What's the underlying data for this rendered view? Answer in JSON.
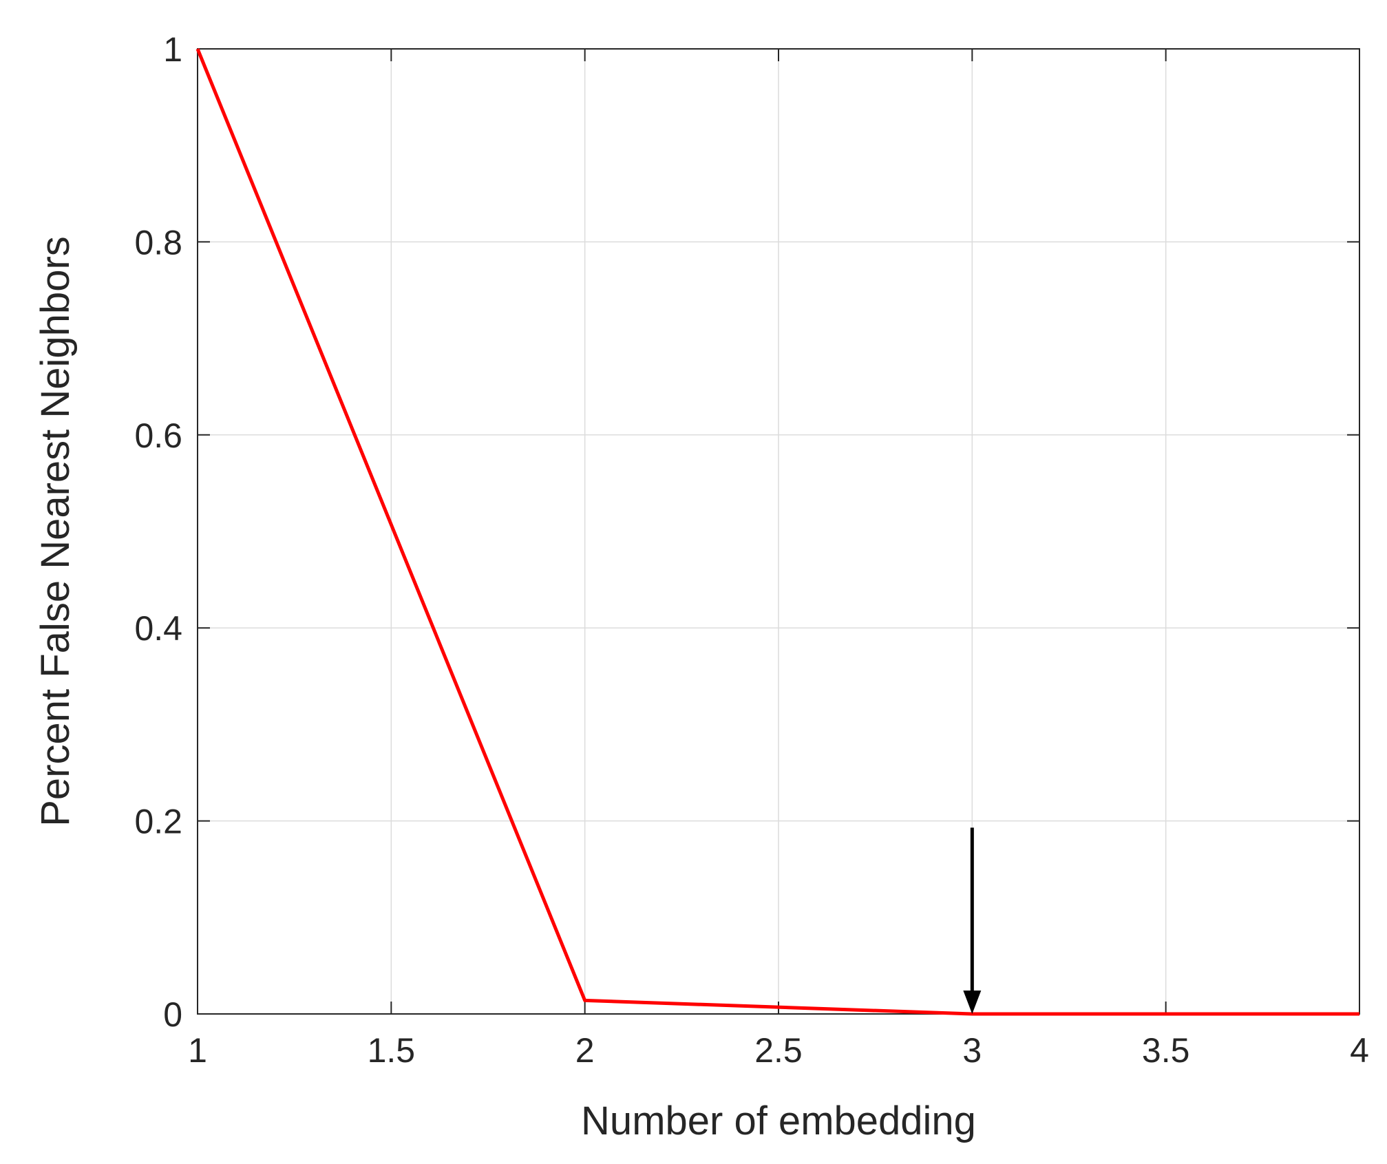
{
  "chart_data": {
    "type": "line",
    "title": "",
    "xlabel": "Number of embedding",
    "ylabel": "Percent False Nearest Neighbors",
    "xlim": [
      1,
      4
    ],
    "ylim": [
      0,
      1
    ],
    "grid": true,
    "x_ticks": [
      {
        "value": 1,
        "label": "1"
      },
      {
        "value": 1.5,
        "label": "1.5"
      },
      {
        "value": 2,
        "label": "2"
      },
      {
        "value": 2.5,
        "label": "2.5"
      },
      {
        "value": 3,
        "label": "3"
      },
      {
        "value": 3.5,
        "label": "3.5"
      },
      {
        "value": 4,
        "label": "4"
      }
    ],
    "y_ticks": [
      {
        "value": 0,
        "label": "0"
      },
      {
        "value": 0.2,
        "label": "0.2"
      },
      {
        "value": 0.4,
        "label": "0.4"
      },
      {
        "value": 0.6,
        "label": "0.6"
      },
      {
        "value": 0.8,
        "label": "0.8"
      },
      {
        "value": 1,
        "label": "1"
      }
    ],
    "series": [
      {
        "color": "#ff0000",
        "x": [
          1,
          2,
          3,
          4
        ],
        "y": [
          1.0,
          0.014,
          0.0,
          0.0
        ]
      }
    ],
    "annotations": [
      {
        "type": "arrow",
        "color": "#000000",
        "x": 3,
        "y_from": 0.193,
        "y_to": 0.0
      }
    ]
  }
}
